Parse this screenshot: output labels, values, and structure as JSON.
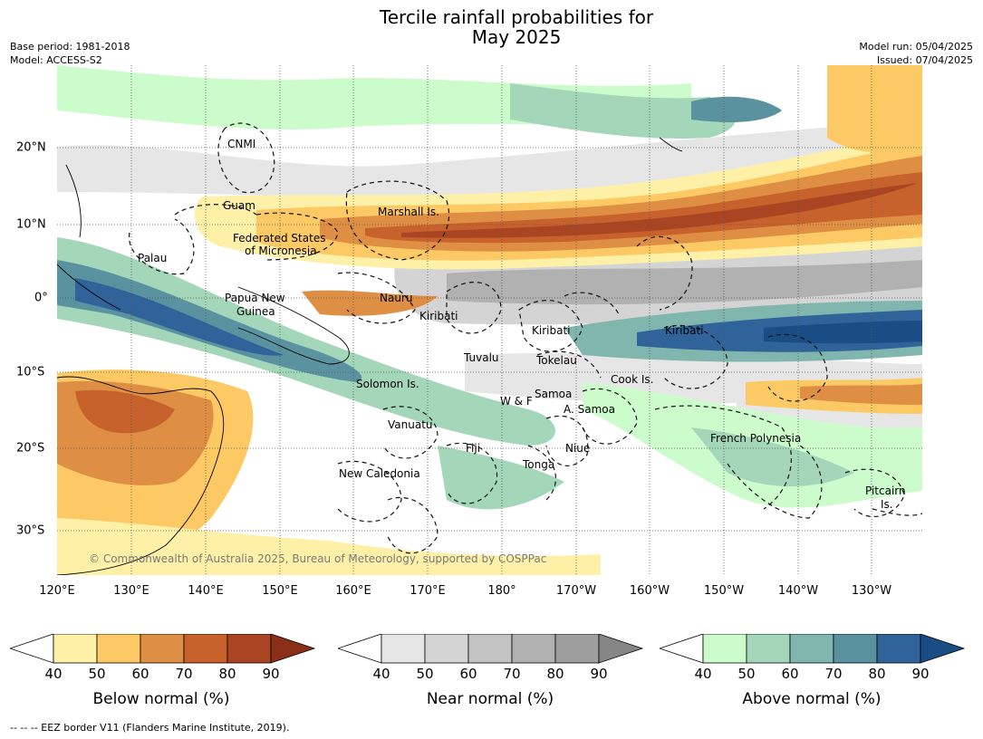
{
  "title_line1": "Tercile rainfall probabilities for",
  "title_line2": "May 2025",
  "base_period": "Base period: 1981-2018",
  "model": "Model: ACCESS-S2",
  "model_run": "Model run: 05/04/2025",
  "issued": "Issued: 07/04/2025",
  "copyright": "© Commonwealth of Australia 2025, Bureau of Meteorology, supported by COSPPac",
  "footnote": "--  --  -- EEZ border V11 (Flanders Marine Institute, 2019).",
  "lon_labels": [
    "120°E",
    "130°E",
    "140°E",
    "150°E",
    "160°E",
    "170°E",
    "180°",
    "170°W",
    "160°W",
    "150°W",
    "140°W",
    "130°W"
  ],
  "lat_labels": [
    "20°N",
    "10°N",
    "0°",
    "10°S",
    "20°S",
    "30°S"
  ],
  "place_labels": [
    "CNMI",
    "Guam",
    "Marshall Is.",
    "Federated States",
    "of Micronesia",
    "Palau",
    "Papua New",
    "Guinea",
    "Nauru",
    "Kiribati",
    "Kiribati",
    "Kiribati",
    "Tuvalu",
    "Tokelau",
    "Cook Is.",
    "Solomon Is.",
    "W & F",
    "Samoa",
    "A. Samoa",
    "Vanuatu",
    "Fiji",
    "Niue",
    "Tonga",
    "French Polynesia",
    "New Caledonia",
    "Pitcairn",
    "Is."
  ],
  "colorbars": [
    {
      "label": "Below normal (%)",
      "ticks": [
        "40",
        "50",
        "60",
        "70",
        "80",
        "90"
      ],
      "colors": [
        "#fff0a8",
        "#fdc964",
        "#df8f43",
        "#c7622d",
        "#a94522",
        "#8a3018"
      ]
    },
    {
      "label": "Near normal (%)",
      "ticks": [
        "40",
        "50",
        "60",
        "70",
        "80",
        "90"
      ],
      "colors": [
        "#e6e6e6",
        "#d4d4d4",
        "#c3c3c3",
        "#b1b1b1",
        "#9e9e9e",
        "#868686"
      ]
    },
    {
      "label": "Above normal (%)",
      "ticks": [
        "40",
        "50",
        "60",
        "70",
        "80",
        "90"
      ],
      "colors": [
        "#ccfccb",
        "#a4d7b9",
        "#80b6ad",
        "#5b92a0",
        "#2f6399",
        "#1a4d84"
      ]
    }
  ]
}
